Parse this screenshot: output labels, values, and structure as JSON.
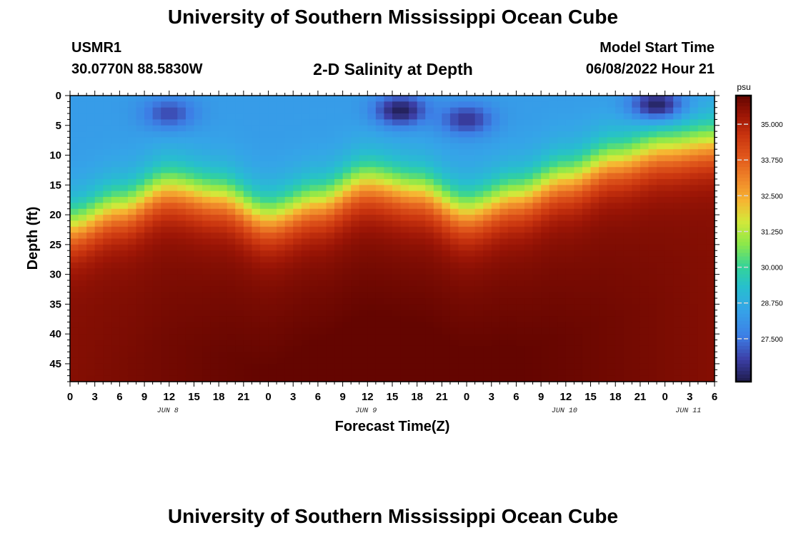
{
  "header": {
    "title": "University of Southern Mississippi Ocean Cube",
    "station": "USMR1",
    "coords": "30.0770N  88.5830W",
    "subtitle": "2-D Salinity at Depth",
    "start_label": "Model Start Time",
    "start_value": "06/08/2022 Hour 21"
  },
  "footer": {
    "title": "University of Southern Mississippi Ocean Cube"
  },
  "chart_data": {
    "type": "heatmap",
    "title": "2-D Salinity at Depth",
    "xlabel": "Forecast Time(Z)",
    "ylabel": "Depth (ft)",
    "x_tick_labels": [
      "0",
      "3",
      "6",
      "9",
      "12",
      "15",
      "18",
      "21",
      "0",
      "3",
      "6",
      "9",
      "12",
      "15",
      "18",
      "21",
      "0",
      "3",
      "6",
      "9",
      "12",
      "15",
      "18",
      "21",
      "0",
      "3",
      "6"
    ],
    "x_day_labels": [
      {
        "label": "JUN 8",
        "hour": 12
      },
      {
        "label": "JUN 9",
        "hour": 36
      },
      {
        "label": "JUN 10",
        "hour": 60
      },
      {
        "label": "JUN 11",
        "hour": 75
      }
    ],
    "xlim_hours": [
      0,
      78
    ],
    "y_ticks": [
      0,
      5,
      10,
      15,
      20,
      25,
      30,
      35,
      40,
      45
    ],
    "ylim": [
      0,
      48
    ],
    "colorbar": {
      "unit": "psu",
      "range": [
        26.0,
        36.0
      ],
      "ticks": [
        "35.000",
        "33.750",
        "32.500",
        "31.250",
        "30.000",
        "28.750",
        "27.500"
      ],
      "tick_values": [
        35.0,
        33.75,
        32.5,
        31.25,
        30.0,
        28.75,
        27.5
      ]
    },
    "colormap_stops": [
      {
        "value": 26.0,
        "color": "#1f1c4d"
      },
      {
        "value": 26.8,
        "color": "#3c40a8"
      },
      {
        "value": 27.6,
        "color": "#3d7fe6"
      },
      {
        "value": 28.5,
        "color": "#35a4e8"
      },
      {
        "value": 29.3,
        "color": "#27bfce"
      },
      {
        "value": 30.0,
        "color": "#33d39a"
      },
      {
        "value": 30.8,
        "color": "#8ce84a"
      },
      {
        "value": 31.6,
        "color": "#d3e83a"
      },
      {
        "value": 32.3,
        "color": "#f6b632"
      },
      {
        "value": 33.0,
        "color": "#f08a2a"
      },
      {
        "value": 33.8,
        "color": "#e25a1c"
      },
      {
        "value": 34.6,
        "color": "#c9340f"
      },
      {
        "value": 35.3,
        "color": "#9d1606"
      },
      {
        "value": 36.0,
        "color": "#640500"
      }
    ],
    "halocline": {
      "hours": [
        0,
        6,
        12,
        18,
        24,
        30,
        36,
        42,
        48,
        54,
        60,
        66,
        72,
        78
      ],
      "depth_ft": [
        22,
        19,
        15.5,
        17,
        20.5,
        18,
        14.5,
        16,
        19.5,
        17,
        14,
        11,
        9,
        8
      ]
    },
    "surface_lenses": [
      {
        "hour": 12,
        "depth_ft": 3,
        "salinity": 26.9
      },
      {
        "hour": 40,
        "depth_ft": 2.5,
        "salinity": 26.1
      },
      {
        "hour": 48,
        "depth_ft": 4,
        "salinity": 26.6
      },
      {
        "hour": 71,
        "depth_ft": 1.5,
        "salinity": 26.2
      }
    ],
    "surface_salinity": 28.3,
    "deep_salinity": 35.6
  }
}
